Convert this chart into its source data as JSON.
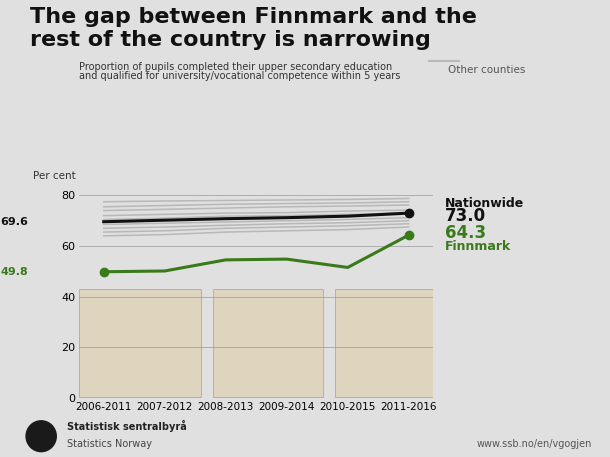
{
  "title_line1": "The gap between Finnmark and the",
  "title_line2": "rest of the country is narrowing",
  "subtitle_line1": "Proportion of pupils completed their upper secondary education",
  "subtitle_line2": "and qualified for university/vocational competence within 5 years",
  "ylabel": "Per cent",
  "other_counties_label": "Other counties",
  "background_color": "#e0e0e0",
  "x_labels": [
    "2006-2011",
    "2007-2012",
    "2008-2013",
    "2009-2014",
    "2010-2015",
    "2011-2016"
  ],
  "nationwide": [
    69.6,
    70.2,
    70.8,
    71.2,
    71.8,
    73.0
  ],
  "nationwide_start_label": "69.6",
  "nationwide_end_label": "73.0",
  "finnmark": [
    49.8,
    50.1,
    54.5,
    54.8,
    51.5,
    64.3
  ],
  "finnmark_start_label": "49.8",
  "finnmark_end_label": "64.3",
  "nationwide_color": "#111111",
  "finnmark_color": "#3a7a1a",
  "other_counties": [
    [
      72.0,
      72.5,
      73.0,
      73.2,
      73.8,
      74.2
    ],
    [
      70.5,
      71.0,
      71.8,
      72.0,
      72.5,
      73.0
    ],
    [
      68.5,
      69.0,
      69.5,
      70.0,
      70.5,
      71.2
    ],
    [
      67.0,
      67.5,
      68.2,
      68.8,
      69.2,
      70.0
    ],
    [
      65.5,
      66.0,
      67.0,
      67.5,
      68.0,
      68.8
    ],
    [
      64.0,
      64.5,
      65.5,
      66.0,
      66.5,
      67.5
    ],
    [
      75.5,
      76.0,
      76.5,
      76.8,
      77.0,
      77.5
    ],
    [
      74.0,
      74.5,
      75.0,
      75.5,
      75.8,
      76.2
    ],
    [
      77.5,
      77.8,
      78.0,
      78.2,
      78.4,
      78.8
    ]
  ],
  "other_counties_color": "#b8b8b8",
  "ylim": [
    0,
    85
  ],
  "yticks": [
    0,
    20,
    40,
    60,
    80
  ],
  "footer_left1": "Statistisk sentralbyrå",
  "footer_left2": "Statistics Norway",
  "footer_right": "www.ssb.no/en/vgogjen"
}
